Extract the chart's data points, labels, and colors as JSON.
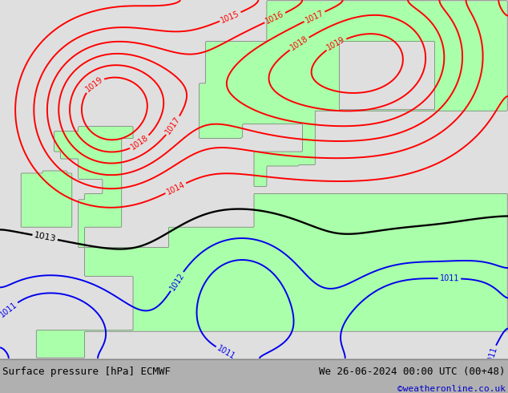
{
  "title_left": "Surface pressure [hPa] ECMWF",
  "title_right": "We 26-06-2024 00:00 UTC (00+48)",
  "credit": "©weatheronline.co.uk",
  "sea_color": "#e0e0e0",
  "land_color": "#aaffaa",
  "contour_levels_red": [
    1014,
    1015,
    1016,
    1017,
    1018,
    1019
  ],
  "contour_levels_black": [
    1013
  ],
  "contour_levels_blue": [
    1011,
    1012
  ],
  "contour_color_red": "#ff0000",
  "contour_color_black": "#000000",
  "contour_color_blue": "#0000ee",
  "contour_linewidth": 1.4,
  "label_fontsize": 7,
  "footer_fontsize": 9,
  "credit_fontsize": 8,
  "credit_color": "#0000cc",
  "footer_bg": "#d0d0d0",
  "fig_bg": "#b0b0b0",
  "lon_min": -12,
  "lon_max": 30,
  "lat_min": 42,
  "lat_max": 68
}
